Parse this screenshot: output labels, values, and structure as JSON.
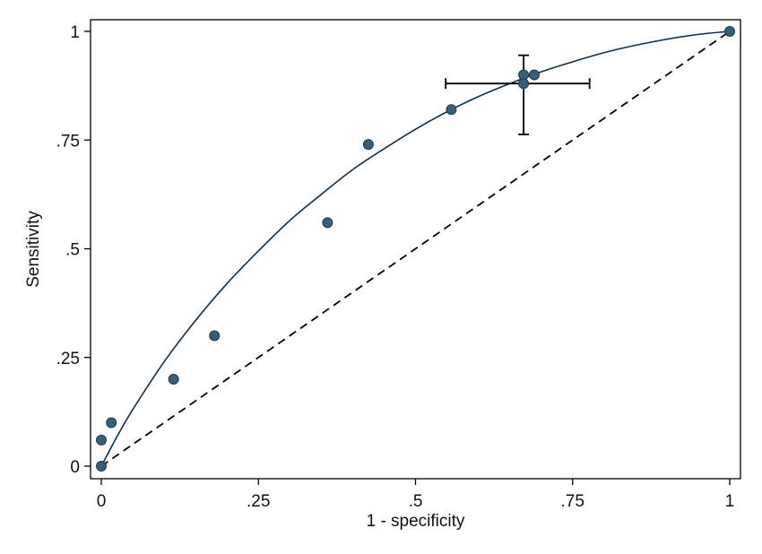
{
  "chart_data": {
    "type": "scatter",
    "title": "",
    "xlabel": "1 - specificity",
    "ylabel": "Sensitivity",
    "xlim": [
      0,
      1
    ],
    "ylim": [
      0,
      1
    ],
    "x_ticks": [
      {
        "value": 0,
        "label": "0"
      },
      {
        "value": 0.25,
        "label": ".25"
      },
      {
        "value": 0.5,
        "label": ".5"
      },
      {
        "value": 0.75,
        "label": ".75"
      },
      {
        "value": 1,
        "label": "1"
      }
    ],
    "y_ticks": [
      {
        "value": 0,
        "label": "0"
      },
      {
        "value": 0.25,
        "label": ".25"
      },
      {
        "value": 0.5,
        "label": ".5"
      },
      {
        "value": 0.75,
        "label": ".75"
      },
      {
        "value": 1,
        "label": "1"
      }
    ],
    "grid": false,
    "legend": "none",
    "points": [
      {
        "x": 0,
        "y": 0
      },
      {
        "x": 0,
        "y": 0.06
      },
      {
        "x": 0.016,
        "y": 0.1
      },
      {
        "x": 0.115,
        "y": 0.2
      },
      {
        "x": 0.18,
        "y": 0.3
      },
      {
        "x": 0.36,
        "y": 0.56
      },
      {
        "x": 0.425,
        "y": 0.74
      },
      {
        "x": 0.557,
        "y": 0.82
      },
      {
        "x": 0.672,
        "y": 0.9
      },
      {
        "x": 0.689,
        "y": 0.9
      },
      {
        "x": 0.672,
        "y": 0.88
      },
      {
        "x": 1,
        "y": 1
      }
    ],
    "summary_point": {
      "x": 0.672,
      "y": 0.88,
      "x_ci": [
        0.548,
        0.777
      ],
      "y_ci": [
        0.763,
        0.945
      ]
    },
    "curve": [
      {
        "x": 0,
        "y": 0
      },
      {
        "x": 0.025,
        "y": 0.068
      },
      {
        "x": 0.05,
        "y": 0.13
      },
      {
        "x": 0.1,
        "y": 0.24
      },
      {
        "x": 0.15,
        "y": 0.335
      },
      {
        "x": 0.2,
        "y": 0.42
      },
      {
        "x": 0.25,
        "y": 0.495
      },
      {
        "x": 0.3,
        "y": 0.565
      },
      {
        "x": 0.35,
        "y": 0.625
      },
      {
        "x": 0.4,
        "y": 0.682
      },
      {
        "x": 0.45,
        "y": 0.73
      },
      {
        "x": 0.5,
        "y": 0.775
      },
      {
        "x": 0.55,
        "y": 0.815
      },
      {
        "x": 0.6,
        "y": 0.85
      },
      {
        "x": 0.65,
        "y": 0.88
      },
      {
        "x": 0.7,
        "y": 0.907
      },
      {
        "x": 0.75,
        "y": 0.93
      },
      {
        "x": 0.8,
        "y": 0.951
      },
      {
        "x": 0.85,
        "y": 0.968
      },
      {
        "x": 0.9,
        "y": 0.982
      },
      {
        "x": 0.95,
        "y": 0.993
      },
      {
        "x": 1,
        "y": 1
      }
    ],
    "reference_line": [
      {
        "x": 0,
        "y": 0
      },
      {
        "x": 1,
        "y": 1
      }
    ],
    "colors": {
      "point_fill": "#3a5e76",
      "point_stroke": "#1f3a4c",
      "curve": "#0f2e4c",
      "reference": "#000000",
      "error_bars": "#000000",
      "frame": "#000000"
    }
  }
}
